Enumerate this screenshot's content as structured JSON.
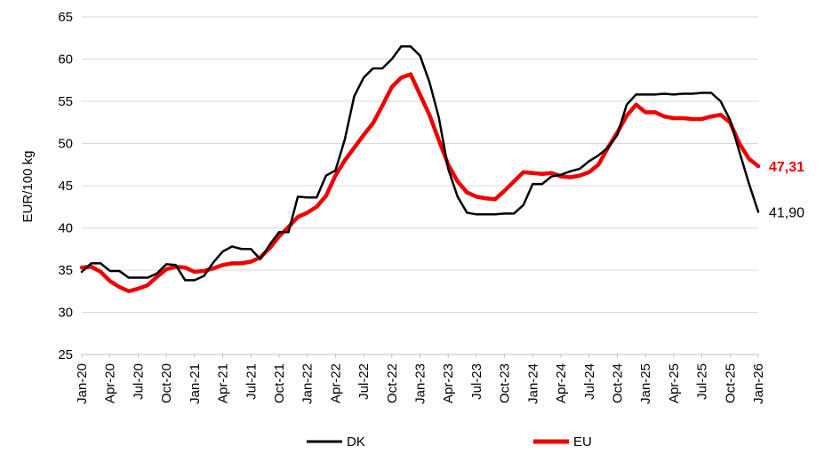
{
  "chart_data": {
    "type": "line",
    "title": "",
    "xlabel": "",
    "ylabel": "EUR/100 kg",
    "ylim": [
      25,
      65
    ],
    "yticks": [
      25,
      30,
      35,
      40,
      45,
      50,
      55,
      60,
      65
    ],
    "grid": "horizontal",
    "legend_position": "bottom",
    "x": [
      "Jan-20",
      "Feb-20",
      "Mar-20",
      "Apr-20",
      "May-20",
      "Jun-20",
      "Jul-20",
      "Aug-20",
      "Sep-20",
      "Oct-20",
      "Nov-20",
      "Dec-20",
      "Jan-21",
      "Feb-21",
      "Mar-21",
      "Apr-21",
      "May-21",
      "Jun-21",
      "Jul-21",
      "Aug-21",
      "Sep-21",
      "Oct-21",
      "Nov-21",
      "Dec-21",
      "Jan-22",
      "Feb-22",
      "Mar-22",
      "Apr-22",
      "May-22",
      "Jun-22",
      "Jul-22",
      "Aug-22",
      "Sep-22",
      "Oct-22",
      "Nov-22",
      "Dec-22",
      "Jan-23",
      "Feb-23",
      "Mar-23",
      "Apr-23",
      "May-23",
      "Jun-23",
      "Jul-23",
      "Aug-23",
      "Sep-23",
      "Oct-23",
      "Nov-23",
      "Dec-23",
      "Jan-24",
      "Feb-24",
      "Mar-24",
      "Apr-24",
      "May-24",
      "Jun-24",
      "Jul-24",
      "Aug-24",
      "Sep-24",
      "Oct-24",
      "Nov-24",
      "Dec-24",
      "Jan-25",
      "Feb-25",
      "Mar-25",
      "Apr-25",
      "May-25",
      "Jun-25",
      "Jul-25",
      "Aug-25",
      "Sep-25",
      "Oct-25",
      "Nov-25",
      "Dec-25",
      "Jan-26"
    ],
    "xtick_labels": [
      "Jan-20",
      "Apr-20",
      "Jul-20",
      "Oct-20",
      "Jan-21",
      "Apr-21",
      "Jul-21",
      "Oct-21",
      "Jan-22",
      "Apr-22",
      "Jul-22",
      "Oct-22",
      "Jan-23",
      "Apr-23",
      "Jul-23",
      "Oct-23",
      "Jan-24",
      "Apr-24",
      "Jul-24",
      "Oct-24",
      "Jan-25",
      "Apr-25",
      "Jul-25",
      "Oct-25",
      "Jan-26"
    ],
    "series": [
      {
        "name": "DK",
        "color": "#000000",
        "end_label": "41,90",
        "values": [
          34.8,
          35.8,
          35.8,
          34.9,
          34.9,
          34.1,
          34.1,
          34.1,
          34.6,
          35.7,
          35.6,
          33.8,
          33.8,
          34.3,
          35.9,
          37.2,
          37.8,
          37.5,
          37.5,
          36.3,
          38.0,
          39.5,
          39.5,
          43.7,
          43.6,
          43.6,
          46.2,
          46.8,
          50.5,
          55.6,
          57.8,
          58.9,
          58.9,
          60.0,
          61.5,
          61.5,
          60.4,
          57.3,
          53.1,
          47.0,
          43.7,
          41.8,
          41.6,
          41.6,
          41.6,
          41.7,
          41.7,
          42.7,
          45.2,
          45.2,
          46.1,
          46.3,
          46.7,
          47.0,
          47.9,
          48.6,
          49.5,
          51.0,
          54.6,
          55.8,
          55.8,
          55.8,
          55.9,
          55.8,
          55.9,
          55.9,
          56.0,
          56.0,
          55.0,
          52.8,
          49.0,
          45.3,
          41.9
        ]
      },
      {
        "name": "EU",
        "color": "#ee0000",
        "end_label": "47,31",
        "values": [
          35.3,
          35.4,
          34.8,
          33.7,
          33.0,
          32.5,
          32.8,
          33.2,
          34.2,
          35.1,
          35.4,
          35.3,
          34.8,
          34.9,
          35.2,
          35.6,
          35.8,
          35.8,
          36.0,
          36.5,
          37.6,
          39.0,
          40.1,
          41.3,
          41.8,
          42.5,
          43.8,
          46.2,
          48.0,
          49.5,
          51.0,
          52.4,
          54.5,
          56.7,
          57.8,
          58.2,
          55.8,
          53.4,
          50.4,
          47.5,
          45.5,
          44.2,
          43.7,
          43.5,
          43.4,
          44.4,
          45.5,
          46.6,
          46.5,
          46.4,
          46.5,
          46.1,
          46.0,
          46.2,
          46.6,
          47.5,
          49.5,
          51.3,
          53.3,
          54.6,
          53.7,
          53.7,
          53.2,
          53.0,
          53.0,
          52.9,
          52.9,
          53.2,
          53.4,
          52.5,
          50.0,
          48.2,
          47.31
        ]
      }
    ]
  }
}
